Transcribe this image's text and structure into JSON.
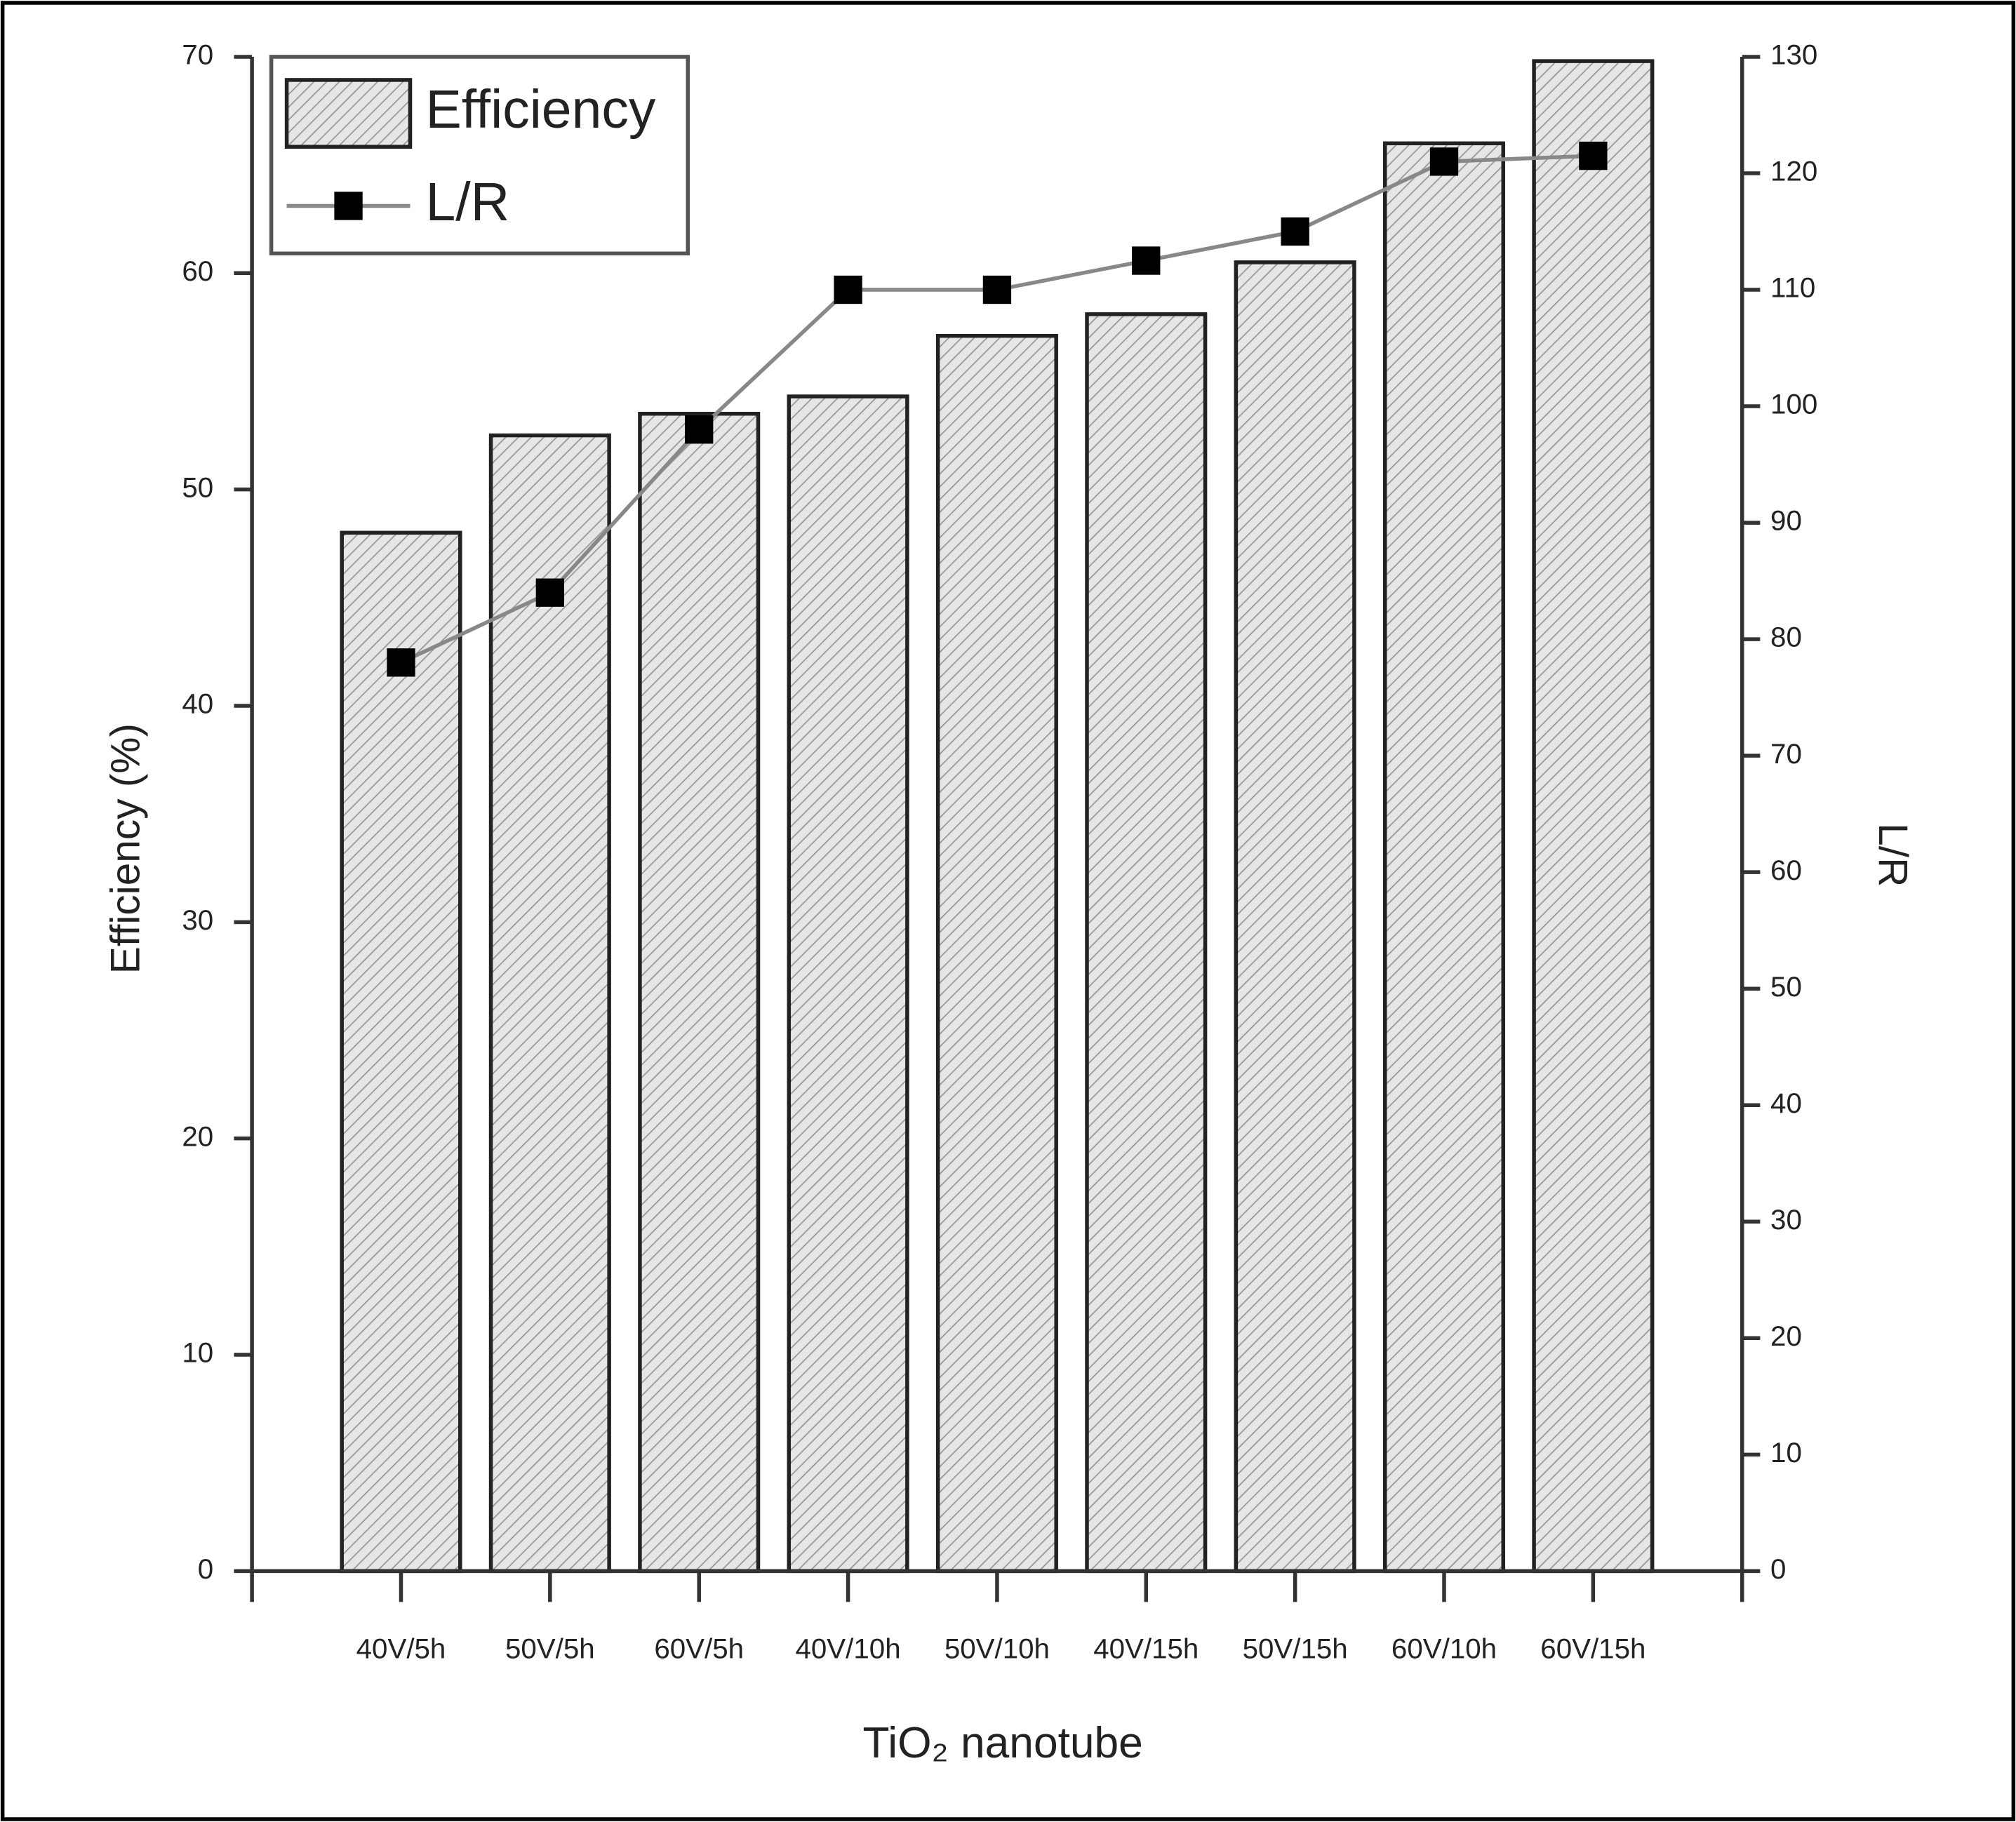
{
  "chart_data": {
    "type": "bar",
    "xlabel": "TiO₂ nanotube",
    "ylabel": "Efficiency (%)",
    "y2label": "L/R",
    "categories": [
      "40V/5h",
      "50V/5h",
      "60V/5h",
      "40V/10h",
      "50V/10h",
      "40V/15h",
      "50V/15h",
      "60V/10h",
      "60V/15h"
    ],
    "series": [
      {
        "name": "Efficiency",
        "type": "bar",
        "color": "#d9d9d9",
        "values": [
          48,
          52.5,
          53.5,
          54.3,
          57.1,
          58.1,
          60.5,
          66,
          69.8
        ]
      },
      {
        "name": "L/R",
        "type": "line",
        "axis": "y2",
        "color": "#000000",
        "values": [
          78,
          84,
          98,
          110,
          110,
          112.5,
          115,
          121,
          121.5
        ]
      }
    ],
    "ylim": [
      0,
      70
    ],
    "yticks": [
      0,
      10,
      20,
      30,
      40,
      50,
      60,
      70
    ],
    "y2lim": [
      0,
      130
    ],
    "y2ticks": [
      0,
      10,
      20,
      30,
      40,
      50,
      60,
      70,
      80,
      90,
      100,
      110,
      120,
      130
    ],
    "legend": "top-left"
  }
}
